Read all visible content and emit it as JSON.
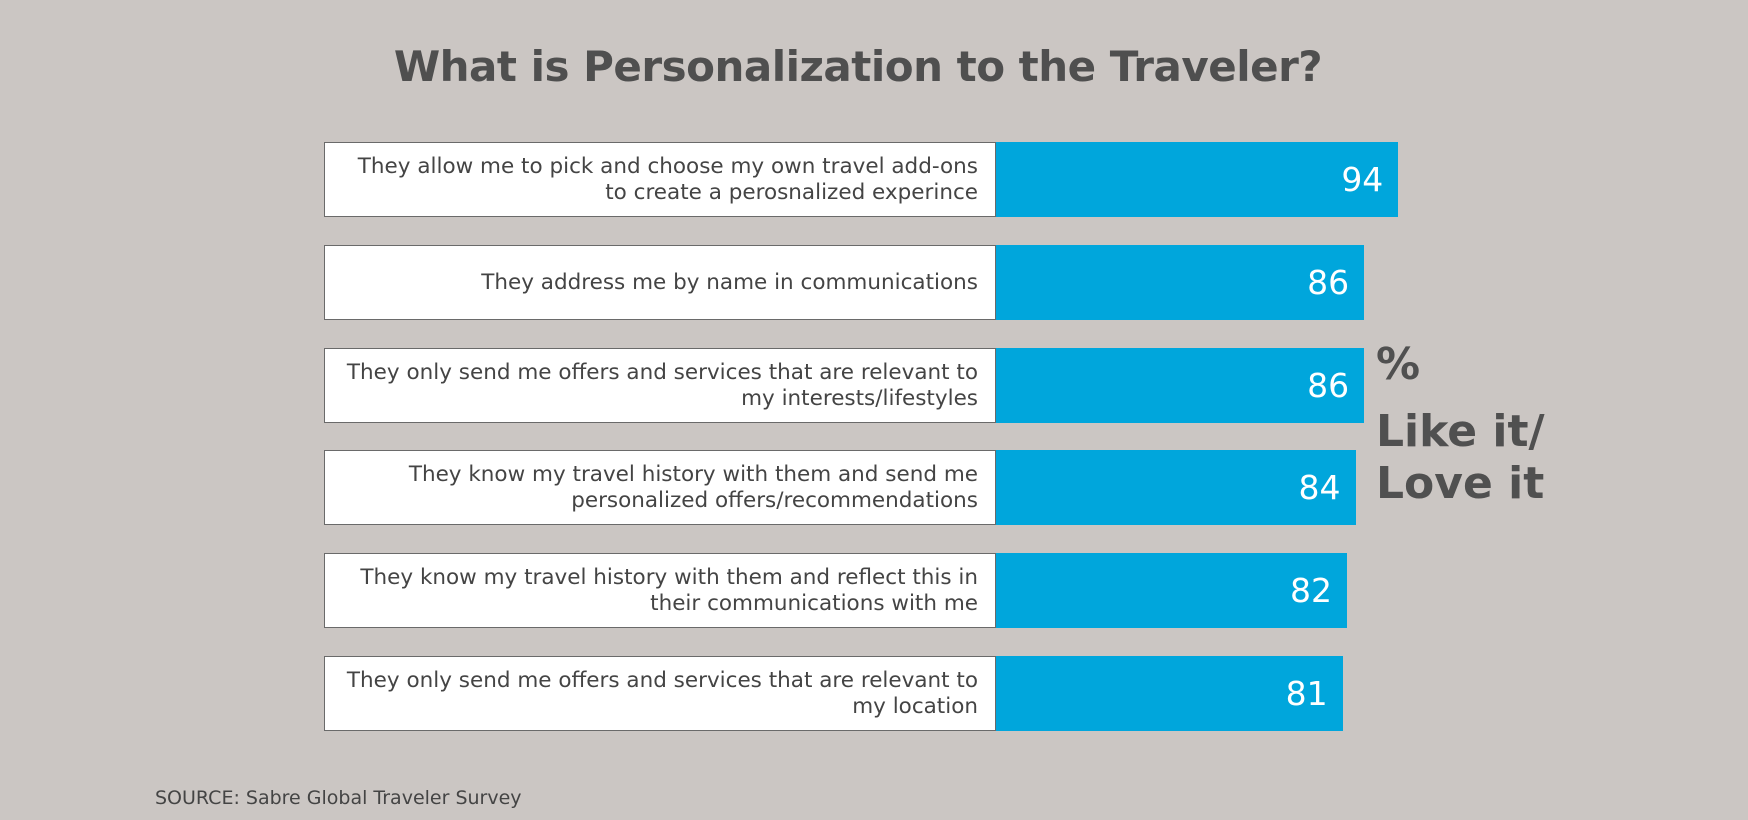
{
  "chart_data": {
    "type": "bar",
    "orientation": "horizontal",
    "title": "What is Personalization to the Traveler?",
    "categories": [
      "They allow me to pick and choose my own travel add-ons to create a perosnalized experince",
      "They address me by name in communications",
      "They only send me offers and services that are relevant to my interests/lifestyles",
      "They know my travel history with them and send me personalized offers/recommendations",
      "They know my travel history with them and reflect this in their communications with me",
      "They only send me offers and services that are relevant to my location"
    ],
    "values": [
      94,
      86,
      86,
      84,
      82,
      81
    ],
    "value_labels": [
      "94",
      "86",
      "86",
      "84",
      "82",
      "81"
    ],
    "xlim": [
      0,
      100
    ],
    "unit_label": "%",
    "measure_label": "Like it/ Love it",
    "bar_color": "#00a6dc",
    "grid": false,
    "source": "SOURCE: Sabre Global Traveler Survey"
  },
  "colors": {
    "background": "#cbc6c3",
    "bar": "#00a6dc",
    "title": "#4f4f4f"
  }
}
